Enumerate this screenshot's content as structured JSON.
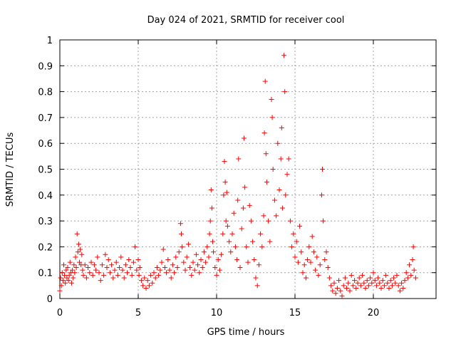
{
  "chart_data": {
    "type": "scatter",
    "title": "Day 024 of 2021, SRMTID for receiver cool",
    "xlabel": "GPS time / hours",
    "ylabel": "SRMTID / TECUs",
    "xlim": [
      0,
      24
    ],
    "ylim": [
      0,
      1
    ],
    "x_ticks": [
      0,
      5,
      10,
      15,
      20
    ],
    "x_tick_labels": [
      "0",
      "5",
      "10",
      "15",
      "20"
    ],
    "y_ticks": [
      0,
      0.1,
      0.2,
      0.3,
      0.4,
      0.5,
      0.6,
      0.7,
      0.8,
      0.9,
      1
    ],
    "y_tick_labels": [
      "0",
      "0.1",
      "0.2",
      "0.3",
      "0.4",
      "0.5",
      "0.6",
      "0.7",
      "0.8",
      "0.9",
      "1"
    ],
    "grid": true,
    "marker": "+",
    "marker_color": "#ff0000",
    "series": [
      {
        "name": "SRMTID",
        "points": [
          [
            0.0,
            0.03
          ],
          [
            0.05,
            0.08
          ],
          [
            0.1,
            0.05
          ],
          [
            0.15,
            0.1
          ],
          [
            0.2,
            0.07
          ],
          [
            0.25,
            0.13
          ],
          [
            0.3,
            0.09
          ],
          [
            0.35,
            0.06
          ],
          [
            0.4,
            0.11
          ],
          [
            0.45,
            0.08
          ],
          [
            0.5,
            0.12
          ],
          [
            0.55,
            0.07
          ],
          [
            0.6,
            0.09
          ],
          [
            0.65,
            0.14
          ],
          [
            0.7,
            0.1
          ],
          [
            0.75,
            0.06
          ],
          [
            0.8,
            0.11
          ],
          [
            0.85,
            0.08
          ],
          [
            0.9,
            0.13
          ],
          [
            0.95,
            0.1
          ],
          [
            1.0,
            0.16
          ],
          [
            1.05,
            0.12
          ],
          [
            1.1,
            0.25
          ],
          [
            1.15,
            0.18
          ],
          [
            1.2,
            0.21
          ],
          [
            1.25,
            0.14
          ],
          [
            1.3,
            0.19
          ],
          [
            1.35,
            0.13
          ],
          [
            1.4,
            0.17
          ],
          [
            1.45,
            0.11
          ],
          [
            1.5,
            0.09
          ],
          [
            1.6,
            0.13
          ],
          [
            1.7,
            0.08
          ],
          [
            1.8,
            0.12
          ],
          [
            1.9,
            0.1
          ],
          [
            2.0,
            0.14
          ],
          [
            2.1,
            0.09
          ],
          [
            2.2,
            0.13
          ],
          [
            2.3,
            0.11
          ],
          [
            2.4,
            0.16
          ],
          [
            2.5,
            0.1
          ],
          [
            2.6,
            0.07
          ],
          [
            2.7,
            0.13
          ],
          [
            2.8,
            0.09
          ],
          [
            2.9,
            0.17
          ],
          [
            3.0,
            0.12
          ],
          [
            3.1,
            0.15
          ],
          [
            3.2,
            0.1
          ],
          [
            3.3,
            0.13
          ],
          [
            3.4,
            0.08
          ],
          [
            3.5,
            0.11
          ],
          [
            3.6,
            0.14
          ],
          [
            3.7,
            0.09
          ],
          [
            3.8,
            0.12
          ],
          [
            3.9,
            0.16
          ],
          [
            4.0,
            0.11
          ],
          [
            4.1,
            0.08
          ],
          [
            4.2,
            0.13
          ],
          [
            4.3,
            0.1
          ],
          [
            4.4,
            0.15
          ],
          [
            4.5,
            0.12
          ],
          [
            4.6,
            0.09
          ],
          [
            4.7,
            0.14
          ],
          [
            4.8,
            0.2
          ],
          [
            4.9,
            0.11
          ],
          [
            5.0,
            0.15
          ],
          [
            5.05,
            0.09
          ],
          [
            5.1,
            0.12
          ],
          [
            5.2,
            0.07
          ],
          [
            5.3,
            0.05
          ],
          [
            5.4,
            0.08
          ],
          [
            5.5,
            0.04
          ],
          [
            5.6,
            0.07
          ],
          [
            5.7,
            0.05
          ],
          [
            5.8,
            0.09
          ],
          [
            5.9,
            0.06
          ],
          [
            6.0,
            0.1
          ],
          [
            6.1,
            0.08
          ],
          [
            6.2,
            0.12
          ],
          [
            6.3,
            0.09
          ],
          [
            6.4,
            0.11
          ],
          [
            6.5,
            0.14
          ],
          [
            6.6,
            0.19
          ],
          [
            6.7,
            0.12
          ],
          [
            6.8,
            0.1
          ],
          [
            6.9,
            0.15
          ],
          [
            7.0,
            0.11
          ],
          [
            7.1,
            0.08
          ],
          [
            7.2,
            0.13
          ],
          [
            7.3,
            0.1
          ],
          [
            7.4,
            0.16
          ],
          [
            7.5,
            0.12
          ],
          [
            7.6,
            0.18
          ],
          [
            7.7,
            0.29
          ],
          [
            7.75,
            0.25
          ],
          [
            7.8,
            0.2
          ],
          [
            7.9,
            0.14
          ],
          [
            8.0,
            0.11
          ],
          [
            8.1,
            0.16
          ],
          [
            8.2,
            0.21
          ],
          [
            8.3,
            0.12
          ],
          [
            8.4,
            0.09
          ],
          [
            8.5,
            0.14
          ],
          [
            8.6,
            0.11
          ],
          [
            8.7,
            0.17
          ],
          [
            8.8,
            0.13
          ],
          [
            8.9,
            0.1
          ],
          [
            9.0,
            0.15
          ],
          [
            9.1,
            0.12
          ],
          [
            9.2,
            0.18
          ],
          [
            9.3,
            0.14
          ],
          [
            9.4,
            0.2
          ],
          [
            9.5,
            0.16
          ],
          [
            9.55,
            0.25
          ],
          [
            9.6,
            0.3
          ],
          [
            9.65,
            0.42
          ],
          [
            9.7,
            0.35
          ],
          [
            9.75,
            0.22
          ],
          [
            9.8,
            0.18
          ],
          [
            9.9,
            0.12
          ],
          [
            10.0,
            0.09
          ],
          [
            10.1,
            0.15
          ],
          [
            10.2,
            0.11
          ],
          [
            10.3,
            0.17
          ],
          [
            10.4,
            0.25
          ],
          [
            10.45,
            0.4
          ],
          [
            10.5,
            0.53
          ],
          [
            10.55,
            0.45
          ],
          [
            10.6,
            0.3
          ],
          [
            10.65,
            0.41
          ],
          [
            10.7,
            0.28
          ],
          [
            10.8,
            0.22
          ],
          [
            10.9,
            0.18
          ],
          [
            11.0,
            0.25
          ],
          [
            11.1,
            0.33
          ],
          [
            11.2,
            0.2
          ],
          [
            11.3,
            0.15
          ],
          [
            11.35,
            0.38
          ],
          [
            11.4,
            0.54
          ],
          [
            11.5,
            0.12
          ],
          [
            11.6,
            0.27
          ],
          [
            11.7,
            0.35
          ],
          [
            11.75,
            0.62
          ],
          [
            11.8,
            0.43
          ],
          [
            11.9,
            0.2
          ],
          [
            12.0,
            0.14
          ],
          [
            12.1,
            0.36
          ],
          [
            12.2,
            0.3
          ],
          [
            12.3,
            0.22
          ],
          [
            12.4,
            0.15
          ],
          [
            12.5,
            0.08
          ],
          [
            12.6,
            0.05
          ],
          [
            12.7,
            0.13
          ],
          [
            12.8,
            0.25
          ],
          [
            12.9,
            0.2
          ],
          [
            13.0,
            0.32
          ],
          [
            13.05,
            0.64
          ],
          [
            13.1,
            0.84
          ],
          [
            13.15,
            0.56
          ],
          [
            13.2,
            0.45
          ],
          [
            13.3,
            0.3
          ],
          [
            13.4,
            0.22
          ],
          [
            13.5,
            0.77
          ],
          [
            13.55,
            0.7
          ],
          [
            13.6,
            0.5
          ],
          [
            13.7,
            0.38
          ],
          [
            13.8,
            0.32
          ],
          [
            13.9,
            0.6
          ],
          [
            14.0,
            0.42
          ],
          [
            14.1,
            0.54
          ],
          [
            14.15,
            0.66
          ],
          [
            14.2,
            0.35
          ],
          [
            14.3,
            0.94
          ],
          [
            14.35,
            0.8
          ],
          [
            14.4,
            0.4
          ],
          [
            14.5,
            0.48
          ],
          [
            14.6,
            0.54
          ],
          [
            14.7,
            0.3
          ],
          [
            14.8,
            0.2
          ],
          [
            14.9,
            0.25
          ],
          [
            15.0,
            0.16
          ],
          [
            15.1,
            0.22
          ],
          [
            15.2,
            0.14
          ],
          [
            15.3,
            0.28
          ],
          [
            15.4,
            0.18
          ],
          [
            15.5,
            0.1
          ],
          [
            15.6,
            0.13
          ],
          [
            15.7,
            0.08
          ],
          [
            15.8,
            0.15
          ],
          [
            15.9,
            0.2
          ],
          [
            16.0,
            0.14
          ],
          [
            16.1,
            0.24
          ],
          [
            16.2,
            0.18
          ],
          [
            16.3,
            0.11
          ],
          [
            16.4,
            0.16
          ],
          [
            16.5,
            0.09
          ],
          [
            16.6,
            0.13
          ],
          [
            16.7,
            0.4
          ],
          [
            16.75,
            0.5
          ],
          [
            16.8,
            0.3
          ],
          [
            16.9,
            0.15
          ],
          [
            17.0,
            0.18
          ],
          [
            17.1,
            0.12
          ],
          [
            17.2,
            0.08
          ],
          [
            17.3,
            0.05
          ],
          [
            17.4,
            0.03
          ],
          [
            17.5,
            0.06
          ],
          [
            17.6,
            0.02
          ],
          [
            17.7,
            0.04
          ],
          [
            17.8,
            0.07
          ],
          [
            17.9,
            0.03
          ],
          [
            18.0,
            0.01
          ],
          [
            18.1,
            0.05
          ],
          [
            18.2,
            0.08
          ],
          [
            18.3,
            0.04
          ],
          [
            18.4,
            0.06
          ],
          [
            18.5,
            0.03
          ],
          [
            18.6,
            0.09
          ],
          [
            18.7,
            0.05
          ],
          [
            18.8,
            0.07
          ],
          [
            18.9,
            0.04
          ],
          [
            19.0,
            0.06
          ],
          [
            19.1,
            0.08
          ],
          [
            19.2,
            0.05
          ],
          [
            19.3,
            0.09
          ],
          [
            19.4,
            0.06
          ],
          [
            19.5,
            0.04
          ],
          [
            19.6,
            0.07
          ],
          [
            19.7,
            0.05
          ],
          [
            19.8,
            0.08
          ],
          [
            19.9,
            0.06
          ],
          [
            20.0,
            0.1
          ],
          [
            20.1,
            0.07
          ],
          [
            20.2,
            0.05
          ],
          [
            20.3,
            0.08
          ],
          [
            20.4,
            0.06
          ],
          [
            20.5,
            0.04
          ],
          [
            20.6,
            0.07
          ],
          [
            20.7,
            0.05
          ],
          [
            20.8,
            0.09
          ],
          [
            20.9,
            0.06
          ],
          [
            21.0,
            0.04
          ],
          [
            21.1,
            0.07
          ],
          [
            21.2,
            0.05
          ],
          [
            21.3,
            0.08
          ],
          [
            21.4,
            0.06
          ],
          [
            21.5,
            0.09
          ],
          [
            21.6,
            0.05
          ],
          [
            21.7,
            0.03
          ],
          [
            21.8,
            0.06
          ],
          [
            21.9,
            0.04
          ],
          [
            22.0,
            0.07
          ],
          [
            22.1,
            0.1
          ],
          [
            22.2,
            0.08
          ],
          [
            22.3,
            0.13
          ],
          [
            22.4,
            0.09
          ],
          [
            22.5,
            0.15
          ],
          [
            22.55,
            0.2
          ],
          [
            22.6,
            0.11
          ],
          [
            22.7,
            0.08
          ]
        ]
      }
    ]
  }
}
